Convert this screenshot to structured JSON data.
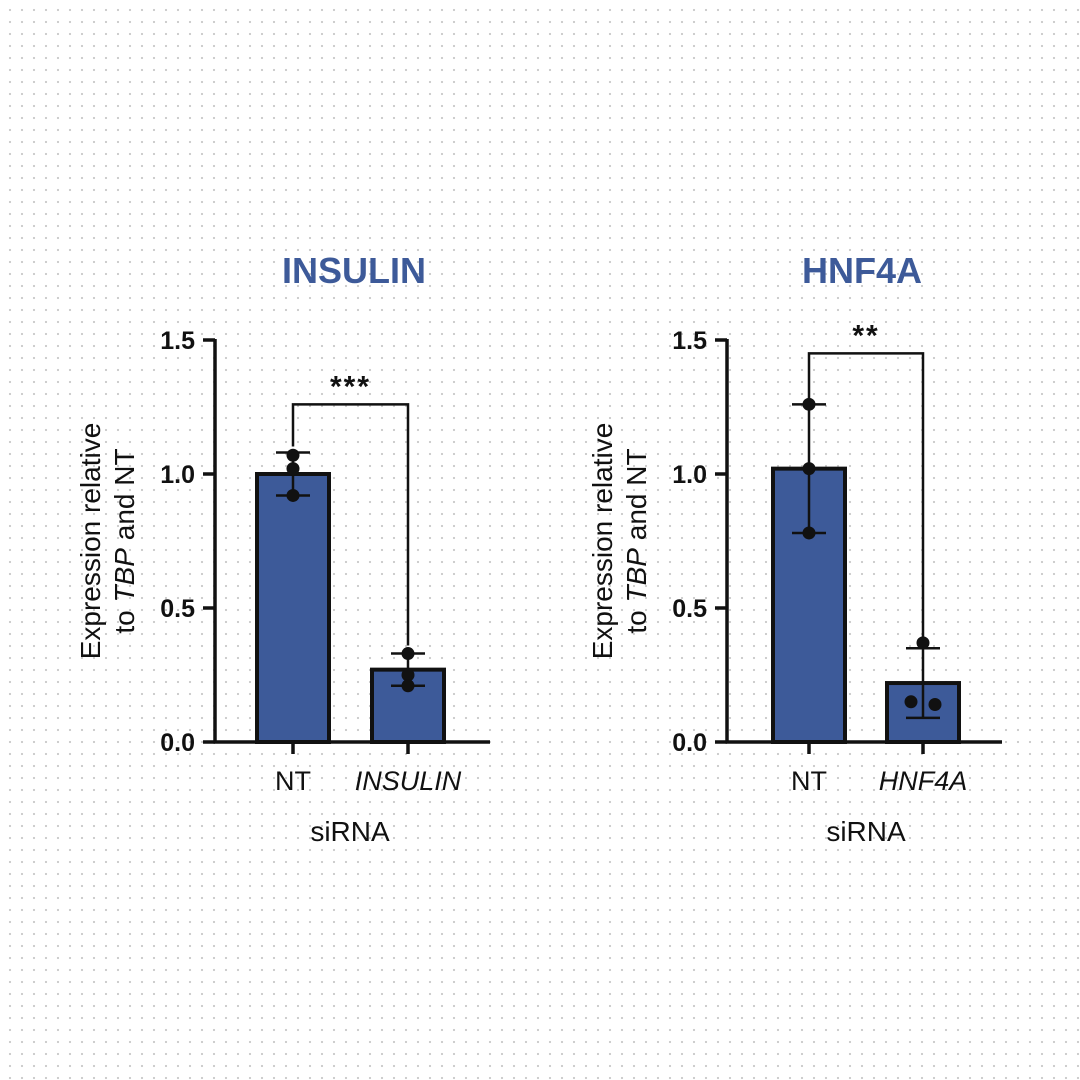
{
  "colors": {
    "bar": "#3d5a99",
    "title": "#3d5a99",
    "ink": "#111111"
  },
  "chart_data": [
    {
      "type": "bar",
      "title": "INSULIN",
      "categories": [
        "NT",
        "INSULIN"
      ],
      "category_italic": [
        false,
        true
      ],
      "values": [
        1.0,
        0.27
      ],
      "error_low": [
        0.92,
        0.21
      ],
      "error_high": [
        1.08,
        0.33
      ],
      "points": [
        [
          1.07,
          1.02,
          0.92
        ],
        [
          0.33,
          0.25,
          0.21
        ]
      ],
      "ylim": [
        0,
        1.5
      ],
      "yticks": [
        "0.0",
        "0.5",
        "1.0",
        "1.5"
      ],
      "ylabel_line1": "Expression relative",
      "ylabel_line2_pre": "to ",
      "ylabel_line2_it": "TBP",
      "ylabel_line2_post": " and NT",
      "xlabel": "siRNA",
      "significance": "***",
      "significance_y": 1.26
    },
    {
      "type": "bar",
      "title": "HNF4A",
      "categories": [
        "NT",
        "HNF4A"
      ],
      "category_italic": [
        false,
        true
      ],
      "values": [
        1.02,
        0.22
      ],
      "error_low": [
        0.78,
        0.09
      ],
      "error_high": [
        1.26,
        0.35
      ],
      "points": [
        [
          1.26,
          1.02,
          0.78
        ],
        [
          0.37,
          0.15,
          0.14
        ]
      ],
      "ylim": [
        0,
        1.5
      ],
      "yticks": [
        "0.0",
        "0.5",
        "1.0",
        "1.5"
      ],
      "ylabel_line1": "Expression relative",
      "ylabel_line2_pre": "to ",
      "ylabel_line2_it": "TBP",
      "ylabel_line2_post": " and NT",
      "xlabel": "siRNA",
      "significance": "**",
      "significance_y": 1.45
    }
  ]
}
